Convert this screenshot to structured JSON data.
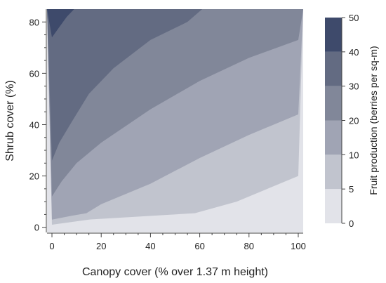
{
  "chart_data": {
    "type": "contour",
    "title": "",
    "xlabel": "Canopy cover (% over 1.37 m height)",
    "ylabel": "Shrub cover (%)",
    "colorbar_label": "Fruit production (berries per sq-m)",
    "xlim": [
      -2,
      102
    ],
    "ylim": [
      -2,
      85
    ],
    "x_ticks": [
      0,
      20,
      40,
      60,
      80,
      100
    ],
    "y_ticks": [
      0,
      20,
      40,
      60,
      80
    ],
    "levels": [
      0,
      5,
      10,
      20,
      30,
      40,
      50
    ],
    "level_colors": [
      "#e2e3e9",
      "#c1c4ce",
      "#a0a4b4",
      "#818799",
      "#636b82",
      "#3e4a6b"
    ],
    "contours": [
      {
        "level": 5,
        "points": [
          [
            0,
            1
          ],
          [
            15,
            3
          ],
          [
            58,
            5.5
          ],
          [
            75,
            10
          ],
          [
            100,
            20
          ]
        ]
      },
      {
        "level": 10,
        "points": [
          [
            0,
            3
          ],
          [
            8,
            4.5
          ],
          [
            14,
            5.5
          ],
          [
            20,
            9
          ],
          [
            40,
            17
          ],
          [
            60,
            27
          ],
          [
            80,
            36
          ],
          [
            100,
            44
          ]
        ]
      },
      {
        "level": 20,
        "points": [
          [
            0,
            12
          ],
          [
            4,
            18
          ],
          [
            10,
            25
          ],
          [
            20,
            33
          ],
          [
            40,
            46
          ],
          [
            60,
            57
          ],
          [
            80,
            66
          ],
          [
            100,
            73
          ]
        ]
      },
      {
        "level": 30,
        "points": [
          [
            0,
            26
          ],
          [
            3,
            33
          ],
          [
            8,
            41
          ],
          [
            15,
            52
          ],
          [
            25,
            62
          ],
          [
            40,
            73
          ],
          [
            55,
            80
          ],
          [
            61,
            85
          ]
        ]
      },
      {
        "level": 40,
        "points": [
          [
            0,
            74
          ],
          [
            3,
            78
          ],
          [
            6,
            82
          ],
          [
            9,
            85
          ]
        ]
      }
    ]
  }
}
